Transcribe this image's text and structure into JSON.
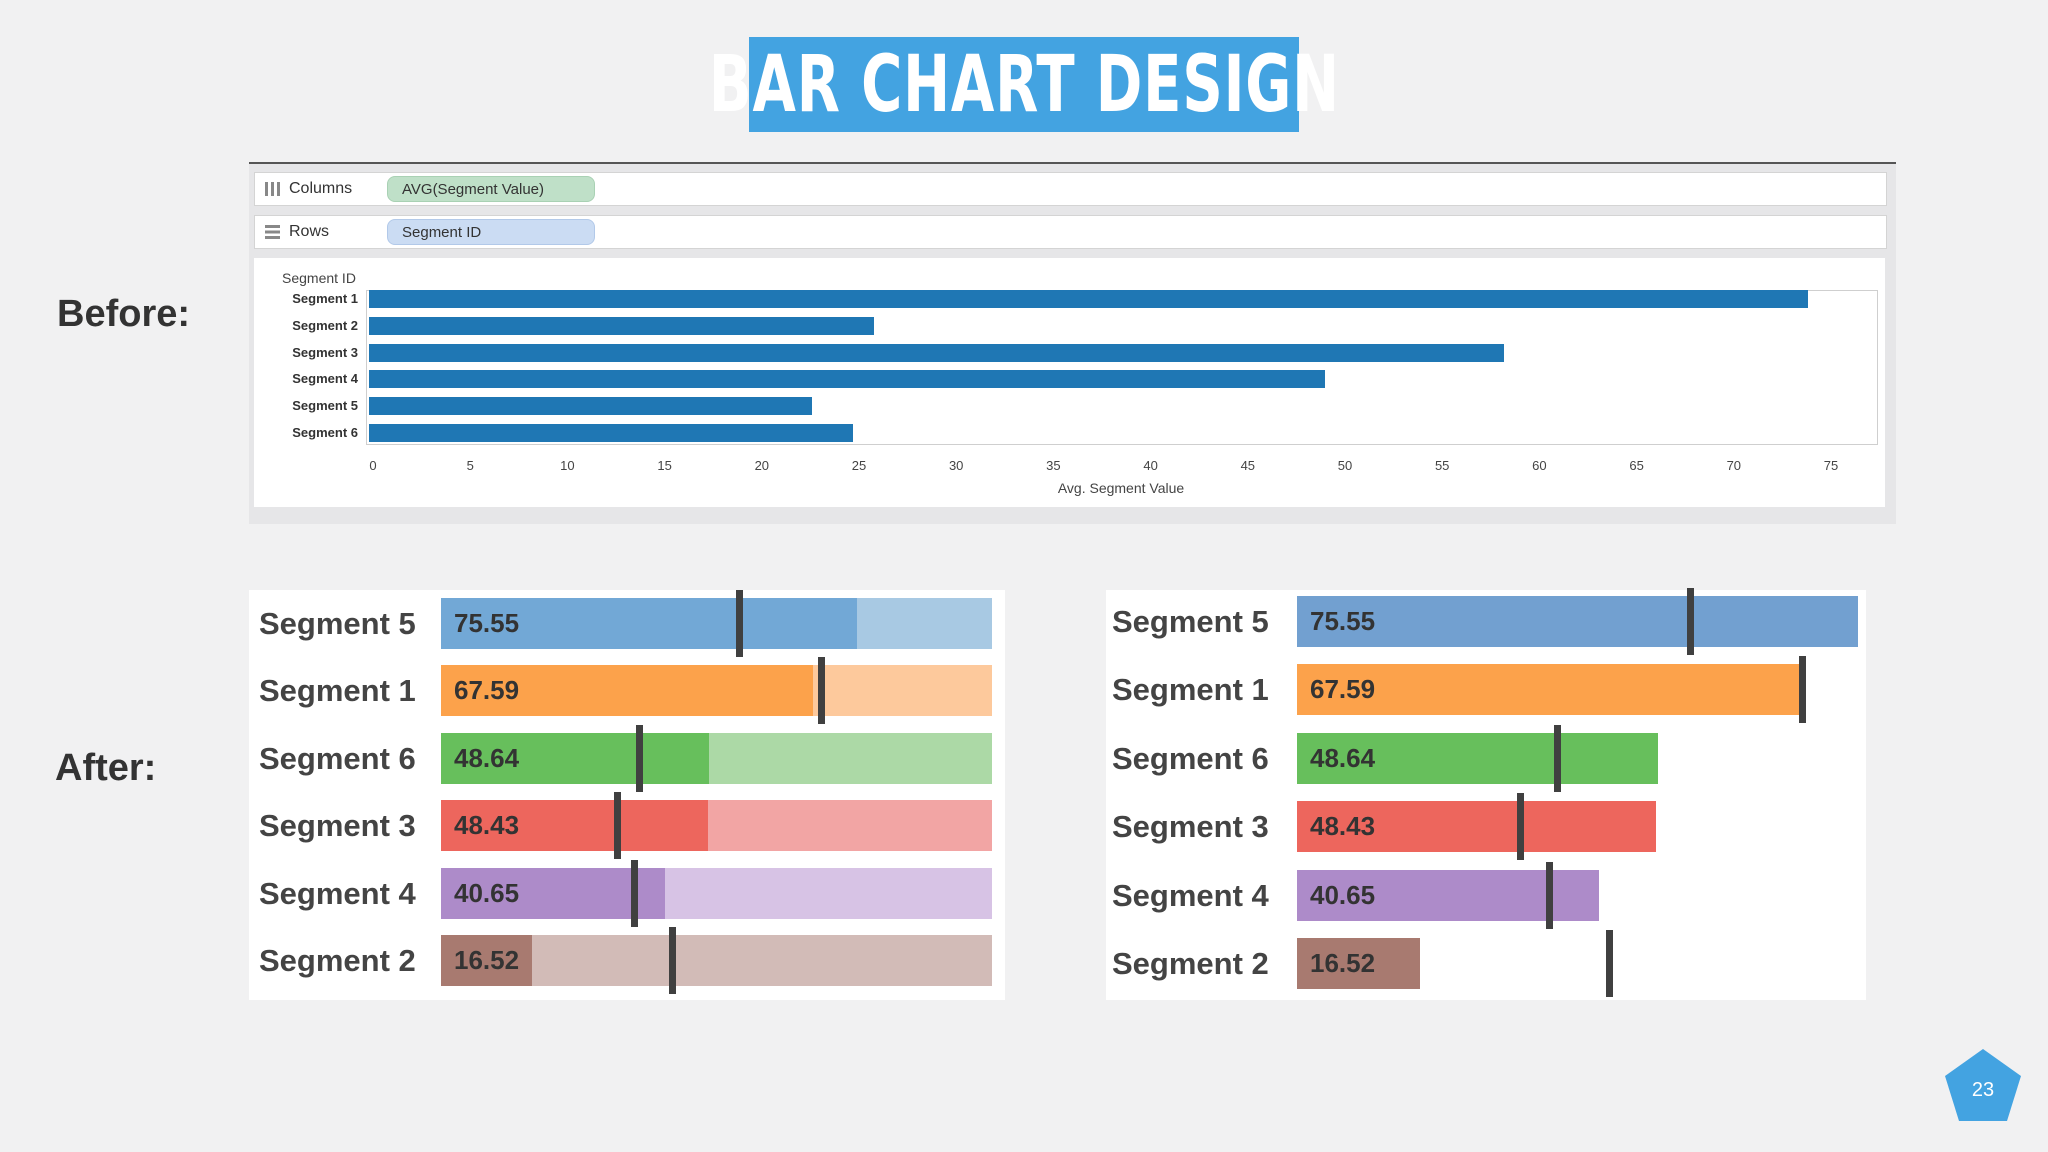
{
  "title": "BAR CHART DESIGN",
  "labels": {
    "before": "Before:",
    "after": "After:"
  },
  "page_number": "23",
  "shelves": {
    "columns_label": "Columns",
    "columns_pill": "AVG(Segment Value)",
    "rows_label": "Rows",
    "rows_pill": "Segment ID"
  },
  "colors": {
    "title_bg": "#43a3e1",
    "before_bar": "#1f77b4",
    "marker": "#404040",
    "page_badge": "#43a3e1"
  },
  "chart_data": [
    {
      "type": "bar",
      "orientation": "horizontal",
      "title": "",
      "ylabel": "Segment ID",
      "xlabel": "Avg. Segment Value",
      "xlim": [
        0,
        77
      ],
      "x_ticks": [
        0,
        5,
        10,
        15,
        20,
        25,
        30,
        35,
        40,
        45,
        50,
        55,
        60,
        65,
        70,
        75
      ],
      "grid": false,
      "categories": [
        "Segment 1",
        "Segment 2",
        "Segment 3",
        "Segment 4",
        "Segment 5",
        "Segment 6"
      ],
      "values": [
        74,
        26,
        58.4,
        49.2,
        22.8,
        24.9
      ]
    },
    {
      "type": "bar",
      "orientation": "horizontal",
      "variant": "bullet",
      "xlim": [
        0,
        100
      ],
      "categories": [
        "Segment 5",
        "Segment 1",
        "Segment 6",
        "Segment 3",
        "Segment 4",
        "Segment 2"
      ],
      "value_labels": [
        "75.55",
        "67.59",
        "48.64",
        "48.43",
        "40.65",
        "16.52"
      ],
      "values": [
        75.55,
        67.59,
        48.64,
        48.43,
        40.65,
        16.52
      ],
      "targets": [
        54,
        69,
        36,
        32,
        35,
        42
      ],
      "colors": [
        "#72a8d6",
        "#fca24b",
        "#67bf5c",
        "#ed665d",
        "#ad8bc9",
        "#a87a70"
      ],
      "band_colors": [
        "#a8c9e3",
        "#fdc99c",
        "#acd9a6",
        "#f2a5a4",
        "#d7c3e5",
        "#d2bbb7"
      ]
    },
    {
      "type": "bar",
      "orientation": "horizontal",
      "variant": "bar-with-target",
      "xlim": [
        0,
        100
      ],
      "categories": [
        "Segment 5",
        "Segment 1",
        "Segment 6",
        "Segment 3",
        "Segment 4",
        "Segment 2"
      ],
      "value_labels": [
        "75.55",
        "67.59",
        "48.64",
        "48.43",
        "40.65",
        "16.52"
      ],
      "values": [
        75.55,
        67.59,
        48.64,
        48.43,
        40.65,
        16.52
      ],
      "targets": [
        53,
        68,
        35,
        30,
        34,
        42
      ],
      "colors": [
        "#72a0d0",
        "#fca24b",
        "#67bf5c",
        "#ed665d",
        "#ad8bc9",
        "#a87a70"
      ]
    }
  ]
}
